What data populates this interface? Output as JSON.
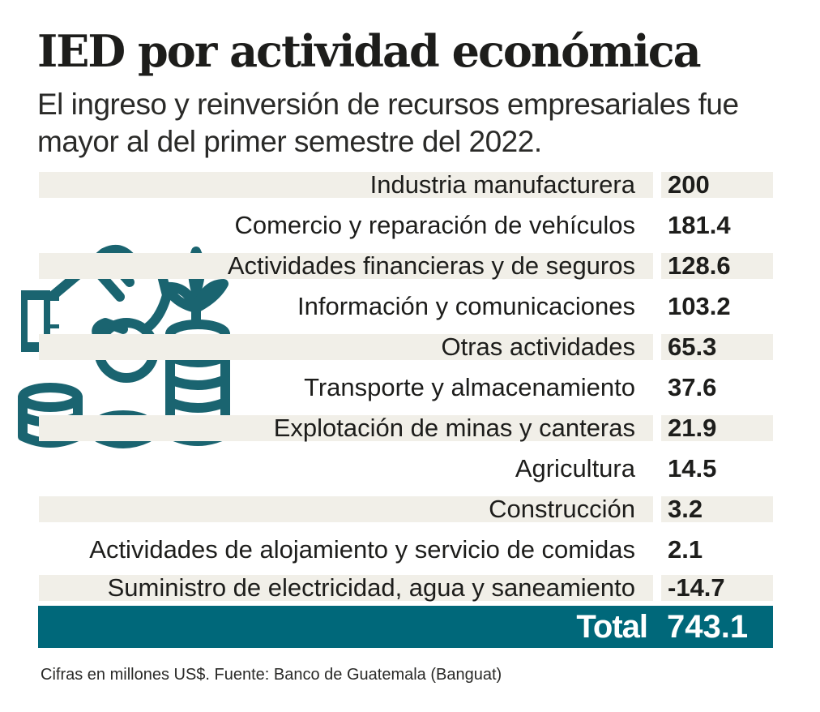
{
  "chart_data": {
    "type": "table",
    "title": "IED por actividad económica",
    "subtitle": "El ingreso y reinversión de recursos empresariales fue mayor al del primer semestre del 2022.",
    "rows": [
      {
        "label": "Industria manufacturera",
        "value": "200"
      },
      {
        "label": "Comercio y reparación de vehículos",
        "value": "181.4"
      },
      {
        "label": "Actividades financieras y de seguros",
        "value": "128.6"
      },
      {
        "label": "Información y comunicaciones",
        "value": "103.2"
      },
      {
        "label": "Otras actividades",
        "value": "65.3"
      },
      {
        "label": "Transporte y almacenamiento",
        "value": "37.6"
      },
      {
        "label": "Explotación de minas y canteras",
        "value": "21.9"
      },
      {
        "label": "Agricultura",
        "value": "14.5"
      },
      {
        "label": "Construcción",
        "value": "3.2"
      },
      {
        "label": "Actividades de alojamiento y servicio de comidas",
        "value": "2.1"
      },
      {
        "label": "Suministro de electricidad, agua y saneamiento",
        "value": "-14.7"
      }
    ],
    "total": {
      "label": "Total",
      "value": "743.1"
    },
    "units": "millones US$"
  },
  "footer": "Cifras en millones US$.  Fuente: Banco de Guatemala (Banguat)",
  "illustration": {
    "icon": "hand-coins-plant-icon"
  },
  "colors": {
    "accent": "#00687a",
    "row_shade": "#f1efe8",
    "text": "#1d1d1b",
    "icon": "#1a6470"
  }
}
